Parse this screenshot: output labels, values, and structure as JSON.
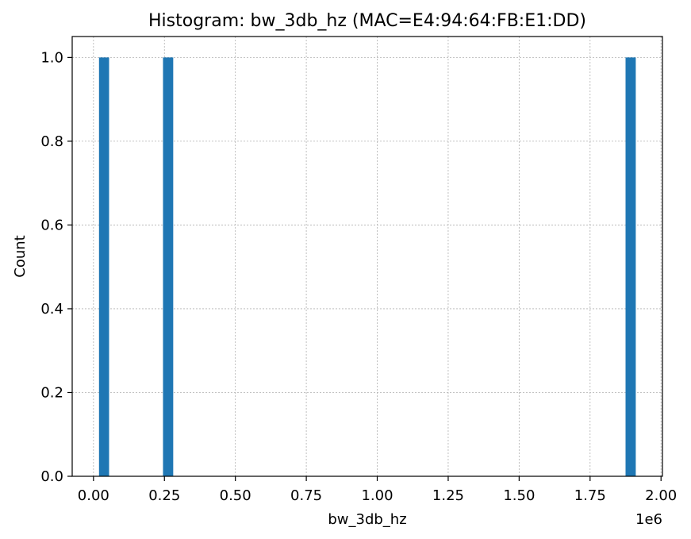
{
  "chart_data": {
    "type": "bar",
    "title": "Histogram: bw_3db_hz (MAC=E4:94:64:FB:E1:DD)",
    "xlabel": "bw_3db_hz",
    "ylabel": "Count",
    "x_offset_label": "1e6",
    "xlim": [
      -75000,
      2005000
    ],
    "ylim": [
      0,
      1.05
    ],
    "x_ticks": [
      0,
      250000,
      500000,
      750000,
      1000000,
      1250000,
      1500000,
      1750000,
      2000000
    ],
    "x_tick_labels": [
      "0.00",
      "0.25",
      "0.50",
      "0.75",
      "1.00",
      "1.25",
      "1.50",
      "1.75",
      "2.00"
    ],
    "y_ticks": [
      0,
      0.2,
      0.4,
      0.6,
      0.8,
      1.0
    ],
    "y_tick_labels": [
      "0.0",
      "0.2",
      "0.4",
      "0.6",
      "0.8",
      "1.0"
    ],
    "bins": [
      {
        "x0": 19500,
        "x1": 55000,
        "count": 1
      },
      {
        "x0": 245000,
        "x1": 281000,
        "count": 1
      },
      {
        "x0": 1875000,
        "x1": 1911000,
        "count": 1
      }
    ],
    "bar_color": "#1f77b4",
    "grid": true,
    "legend": "none"
  }
}
